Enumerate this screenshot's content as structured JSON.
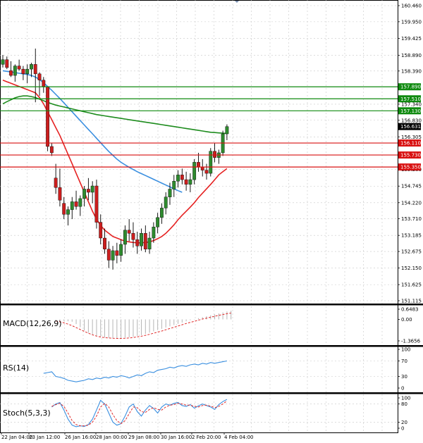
{
  "colors": {
    "bull": "#2e8b2e",
    "bear": "#cc1e1e",
    "ma_fast": "#e52222",
    "ma_mid": "#3a8fe0",
    "ma_slow": "#1e8c1e",
    "res_line": "#0f8a0f",
    "sup_line": "#d81010",
    "price_tag": "#000000",
    "grid": "#c7c7c7"
  },
  "chart_data": [
    {
      "type": "candlestick",
      "name": "price",
      "ylim": [
        151.115,
        160.46
      ],
      "y_ticks": [
        "160.460",
        "159.950",
        "159.425",
        "158.890",
        "158.390",
        "157.340",
        "156.830",
        "156.305",
        "155.280",
        "154.745",
        "154.220",
        "153.710",
        "153.185",
        "152.675",
        "152.150",
        "151.625",
        "151.115"
      ],
      "x_ticks": [
        "22 Jan 04:00",
        "23 Jan 12:00",
        "26 Jan 16:00",
        "28 Jan 00:00",
        "29 Jan 08:00",
        "30 Jan 16:00",
        "2 Feb 20:00",
        "4 Feb 04:00"
      ],
      "candles": [
        {
          "o": 158.6,
          "h": 158.9,
          "l": 158.5,
          "c": 158.75
        },
        {
          "o": 158.75,
          "h": 158.85,
          "l": 158.45,
          "c": 158.5
        },
        {
          "o": 158.4,
          "h": 158.7,
          "l": 158.2,
          "c": 158.25
        },
        {
          "o": 158.25,
          "h": 158.6,
          "l": 158.05,
          "c": 158.55
        },
        {
          "o": 158.55,
          "h": 158.75,
          "l": 158.4,
          "c": 158.45
        },
        {
          "o": 158.45,
          "h": 158.55,
          "l": 158.1,
          "c": 158.3
        },
        {
          "o": 158.3,
          "h": 158.6,
          "l": 158.0,
          "c": 158.45
        },
        {
          "o": 158.45,
          "h": 158.65,
          "l": 158.2,
          "c": 158.6
        },
        {
          "o": 158.6,
          "h": 159.1,
          "l": 157.4,
          "c": 158.3
        },
        {
          "o": 158.3,
          "h": 158.35,
          "l": 157.6,
          "c": 158.1
        },
        {
          "o": 158.1,
          "h": 158.2,
          "l": 157.7,
          "c": 157.9
        },
        {
          "o": 157.9,
          "h": 157.9,
          "l": 155.85,
          "c": 156.0
        },
        {
          "o": 156.0,
          "h": 156.1,
          "l": 155.7,
          "c": 155.8
        },
        {
          "o": 155.0,
          "h": 155.45,
          "l": 154.5,
          "c": 154.7
        },
        {
          "o": 154.7,
          "h": 155.3,
          "l": 154.1,
          "c": 154.3
        },
        {
          "o": 154.2,
          "h": 154.4,
          "l": 153.7,
          "c": 153.85
        },
        {
          "o": 153.85,
          "h": 154.1,
          "l": 153.5,
          "c": 154.0
        },
        {
          "o": 154.0,
          "h": 154.4,
          "l": 153.7,
          "c": 154.25
        },
        {
          "o": 154.25,
          "h": 154.6,
          "l": 154.0,
          "c": 154.1
        },
        {
          "o": 154.1,
          "h": 154.45,
          "l": 153.8,
          "c": 154.35
        },
        {
          "o": 154.35,
          "h": 154.75,
          "l": 154.1,
          "c": 154.65
        },
        {
          "o": 154.65,
          "h": 155.0,
          "l": 154.3,
          "c": 154.55
        },
        {
          "o": 154.55,
          "h": 154.9,
          "l": 154.2,
          "c": 154.75
        },
        {
          "o": 154.75,
          "h": 154.95,
          "l": 153.4,
          "c": 153.6
        },
        {
          "o": 153.6,
          "h": 153.85,
          "l": 152.9,
          "c": 153.1
        },
        {
          "o": 153.1,
          "h": 153.4,
          "l": 152.6,
          "c": 152.75
        },
        {
          "o": 152.75,
          "h": 153.0,
          "l": 152.15,
          "c": 152.4
        },
        {
          "o": 152.4,
          "h": 152.85,
          "l": 152.1,
          "c": 152.7
        },
        {
          "o": 152.7,
          "h": 152.95,
          "l": 152.3,
          "c": 152.55
        },
        {
          "o": 152.55,
          "h": 153.05,
          "l": 152.35,
          "c": 152.9
        },
        {
          "o": 152.9,
          "h": 153.5,
          "l": 152.6,
          "c": 153.35
        },
        {
          "o": 153.35,
          "h": 153.7,
          "l": 153.0,
          "c": 153.25
        },
        {
          "o": 153.25,
          "h": 153.6,
          "l": 152.8,
          "c": 153.05
        },
        {
          "o": 153.05,
          "h": 153.3,
          "l": 152.6,
          "c": 152.85
        },
        {
          "o": 152.85,
          "h": 153.4,
          "l": 152.7,
          "c": 153.25
        },
        {
          "o": 153.25,
          "h": 153.5,
          "l": 152.65,
          "c": 152.75
        },
        {
          "o": 152.75,
          "h": 153.3,
          "l": 152.6,
          "c": 153.1
        },
        {
          "o": 153.1,
          "h": 153.6,
          "l": 152.95,
          "c": 153.45
        },
        {
          "o": 153.45,
          "h": 153.9,
          "l": 153.25,
          "c": 153.75
        },
        {
          "o": 153.75,
          "h": 154.2,
          "l": 153.55,
          "c": 154.05
        },
        {
          "o": 154.05,
          "h": 154.55,
          "l": 153.85,
          "c": 154.4
        },
        {
          "o": 154.4,
          "h": 154.85,
          "l": 154.15,
          "c": 154.65
        },
        {
          "o": 154.65,
          "h": 155.1,
          "l": 154.4,
          "c": 154.9
        },
        {
          "o": 154.9,
          "h": 155.25,
          "l": 154.7,
          "c": 155.1
        },
        {
          "o": 155.1,
          "h": 155.3,
          "l": 154.8,
          "c": 154.95
        },
        {
          "o": 154.95,
          "h": 155.2,
          "l": 154.6,
          "c": 154.8
        },
        {
          "o": 154.8,
          "h": 155.15,
          "l": 154.55,
          "c": 154.95
        },
        {
          "o": 154.95,
          "h": 155.6,
          "l": 154.8,
          "c": 155.5
        },
        {
          "o": 155.5,
          "h": 155.8,
          "l": 155.2,
          "c": 155.35
        },
        {
          "o": 155.35,
          "h": 155.6,
          "l": 155.05,
          "c": 155.25
        },
        {
          "o": 155.25,
          "h": 155.45,
          "l": 154.95,
          "c": 155.15
        },
        {
          "o": 155.15,
          "h": 155.95,
          "l": 155.05,
          "c": 155.85
        },
        {
          "o": 155.85,
          "h": 156.1,
          "l": 155.5,
          "c": 155.65
        },
        {
          "o": 155.65,
          "h": 155.9,
          "l": 155.45,
          "c": 155.8
        },
        {
          "o": 155.8,
          "h": 156.5,
          "l": 155.7,
          "c": 156.4
        },
        {
          "o": 156.4,
          "h": 156.7,
          "l": 156.2,
          "c": 156.63
        }
      ],
      "lines": [
        {
          "name": "ma_fast",
          "color": "#e52222",
          "values": [
            158.1,
            158.05,
            158.0,
            157.95,
            157.9,
            157.85,
            157.8,
            157.75,
            157.7,
            157.55,
            157.35,
            157.1,
            156.85,
            156.6,
            156.35,
            156.05,
            155.75,
            155.45,
            155.15,
            154.85,
            154.55,
            154.25,
            153.95,
            153.7,
            153.5,
            153.35,
            153.25,
            153.15,
            153.1,
            153.05,
            153.0,
            152.98,
            152.96,
            152.95,
            152.95,
            152.96,
            152.98,
            153.02,
            153.08,
            153.15,
            153.25,
            153.38,
            153.52,
            153.68,
            153.82,
            153.95,
            154.08,
            154.22,
            154.38,
            154.52,
            154.66,
            154.8,
            154.95,
            155.1,
            155.2,
            155.3
          ]
        },
        {
          "name": "ma_mid",
          "color": "#3a8fe0",
          "values": [
            158.4,
            158.38,
            158.36,
            158.34,
            158.32,
            158.3,
            158.28,
            158.25,
            158.2,
            158.12,
            158.02,
            157.9,
            157.78,
            157.65,
            157.52,
            157.38,
            157.24,
            157.1,
            156.96,
            156.82,
            156.68,
            156.54,
            156.4,
            156.26,
            156.12,
            155.98,
            155.84,
            155.72,
            155.6,
            155.5,
            155.42,
            155.34,
            155.27,
            155.2,
            155.14,
            155.08,
            155.02,
            154.96,
            154.9,
            154.84,
            154.78,
            154.72,
            154.66,
            154.6,
            154.55
          ],
          "stop_at": 45
        },
        {
          "name": "ma_slow",
          "color": "#1e8c1e",
          "values": [
            157.35,
            157.42,
            157.48,
            157.54,
            157.58,
            157.6,
            157.6,
            157.58,
            157.55,
            157.5,
            157.45,
            157.4,
            157.35,
            157.31,
            157.28,
            157.25,
            157.22,
            157.19,
            157.16,
            157.13,
            157.1,
            157.07,
            157.04,
            157.01,
            156.99,
            156.97,
            156.95,
            156.93,
            156.91,
            156.89,
            156.87,
            156.85,
            156.83,
            156.81,
            156.79,
            156.77,
            156.75,
            156.73,
            156.71,
            156.69,
            156.67,
            156.65,
            156.63,
            156.61,
            156.59,
            156.57,
            156.55,
            156.53,
            156.51,
            156.49,
            156.47,
            156.45,
            156.44,
            156.43,
            156.42,
            156.41
          ]
        }
      ],
      "levels": [
        {
          "label": "157.890",
          "value": 157.89,
          "kind": "resistance"
        },
        {
          "label": "157.510",
          "value": 157.51,
          "kind": "resistance"
        },
        {
          "label": "157.130",
          "value": 157.13,
          "kind": "resistance"
        },
        {
          "label": "156.110",
          "value": 156.11,
          "kind": "support"
        },
        {
          "label": "155.730",
          "value": 155.73,
          "kind": "support"
        },
        {
          "label": "155.350",
          "value": 155.35,
          "kind": "support"
        }
      ],
      "last_price": {
        "label": "156.631",
        "value": 156.631
      }
    },
    {
      "type": "bar",
      "name": "MACD(12,26,9)",
      "title": "MACD(12,26,9)",
      "ylim": [
        -1.3656,
        0.6483
      ],
      "y_ticks": [
        "0.6483",
        "0.00",
        "-1.3656"
      ],
      "histogram": [
        -0.05,
        -0.08,
        -0.1,
        -0.12,
        -0.15,
        -0.3,
        -0.5,
        -0.7,
        -0.85,
        -0.95,
        -1.05,
        -1.1,
        -1.15,
        -1.18,
        -1.2,
        -1.2,
        -1.19,
        -1.17,
        -1.14,
        -1.1,
        -1.05,
        -1.0,
        -0.92,
        -0.84,
        -0.76,
        -0.68,
        -0.6,
        -0.52,
        -0.44,
        -0.36,
        -0.28,
        -0.2,
        -0.12,
        -0.05,
        0.02,
        0.08,
        0.14,
        0.2,
        0.26,
        0.32,
        0.38,
        0.44,
        0.5,
        0.55
      ],
      "signal": [
        -0.1,
        -0.15,
        -0.22,
        -0.3,
        -0.4,
        -0.52,
        -0.64,
        -0.76,
        -0.88,
        -0.98,
        -1.06,
        -1.12,
        -1.16,
        -1.18,
        -1.2,
        -1.21,
        -1.21,
        -1.2,
        -1.18,
        -1.15,
        -1.11,
        -1.07,
        -1.01,
        -0.95,
        -0.88,
        -0.81,
        -0.74,
        -0.66,
        -0.58,
        -0.5,
        -0.42,
        -0.34,
        -0.26,
        -0.19,
        -0.12,
        -0.05,
        0.02,
        0.08,
        0.14,
        0.2,
        0.26,
        0.31,
        0.36,
        0.4
      ]
    },
    {
      "type": "line",
      "name": "RS(14)",
      "title": "RS(14)",
      "ylim": [
        0,
        100
      ],
      "y_ticks": [
        "100",
        "70",
        "30",
        "0"
      ],
      "values": [
        38,
        40,
        42,
        30,
        28,
        25,
        20,
        18,
        16,
        18,
        20,
        24,
        22,
        26,
        24,
        28,
        26,
        30,
        28,
        32,
        30,
        26,
        30,
        34,
        32,
        38,
        42,
        40,
        46,
        48,
        50,
        54,
        52,
        56,
        58,
        56,
        60,
        62,
        60,
        64,
        62,
        66,
        64,
        66,
        68,
        70
      ]
    },
    {
      "type": "line",
      "name": "Stoch(5,3,3)",
      "title": "Stoch(5,3,3)",
      "ylim": [
        0,
        100
      ],
      "y_ticks": [
        "100",
        "80",
        "20",
        "0"
      ],
      "main": [
        70,
        80,
        85,
        60,
        30,
        10,
        5,
        8,
        6,
        12,
        30,
        60,
        92,
        80,
        50,
        20,
        10,
        15,
        40,
        70,
        80,
        55,
        40,
        60,
        75,
        65,
        50,
        70,
        80,
        76,
        82,
        85,
        75,
        72,
        78,
        66,
        74,
        80,
        75,
        70,
        62,
        78,
        88,
        95
      ],
      "signal": [
        72,
        78,
        82,
        72,
        50,
        25,
        12,
        8,
        8,
        10,
        20,
        40,
        70,
        82,
        70,
        45,
        25,
        15,
        25,
        48,
        70,
        68,
        55,
        52,
        62,
        68,
        62,
        60,
        70,
        76,
        78,
        82,
        80,
        76,
        76,
        72,
        70,
        75,
        76,
        73,
        68,
        72,
        80,
        90
      ]
    }
  ]
}
